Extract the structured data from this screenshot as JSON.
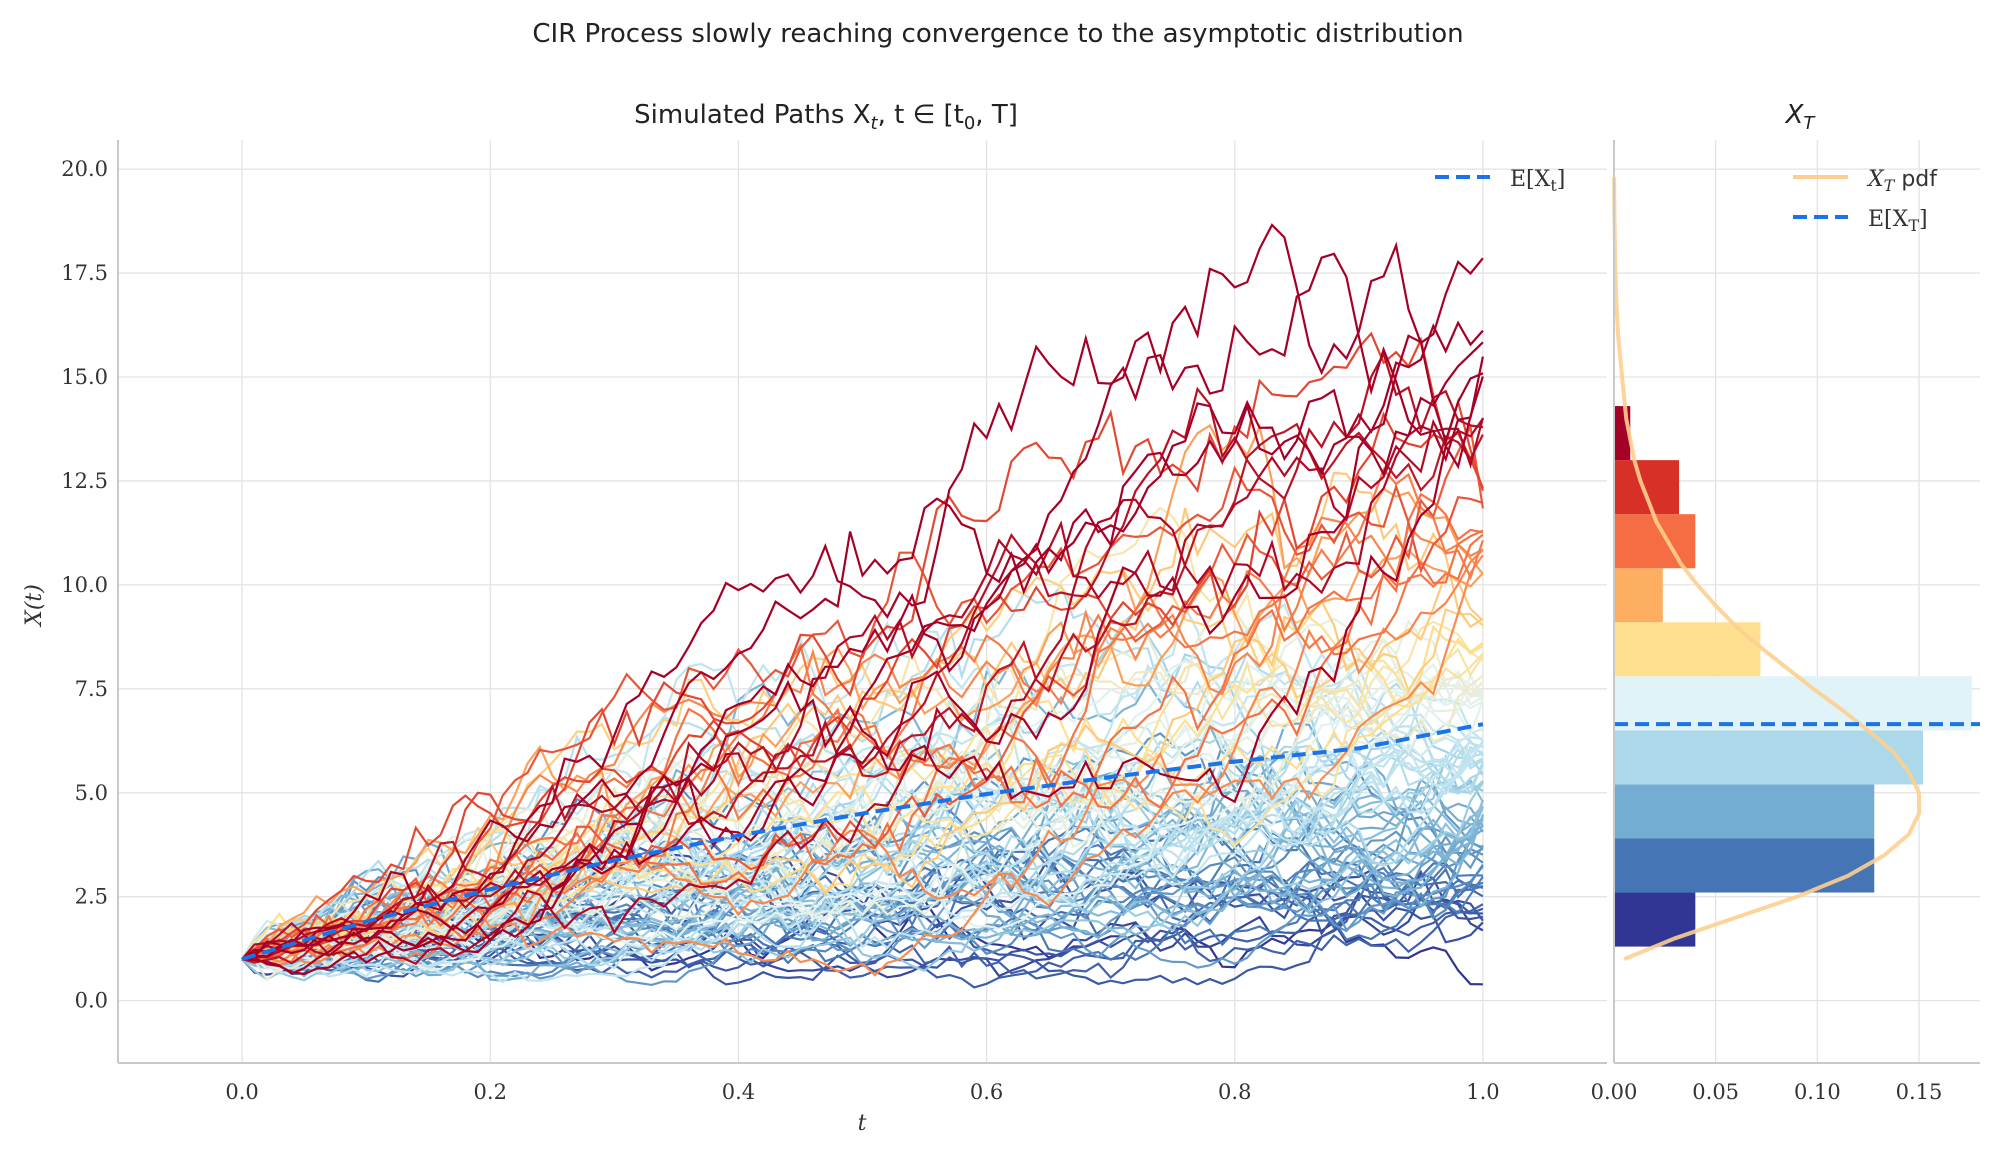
{
  "figure": {
    "suptitle": "CIR Process slowly reaching convergence to the asymptotic distribution"
  },
  "chart_data": [
    {
      "type": "line",
      "title": "Simulated Paths X_t, t ∈ [t_0, T]",
      "xlabel": "t",
      "ylabel": "X(t)",
      "xlim": [
        -0.1,
        1.1
      ],
      "ylim": [
        -1.5,
        20.7
      ],
      "grid": true,
      "legend_position": "top-right",
      "xticks": [
        "0.0",
        "0.2",
        "0.4",
        "0.6",
        "0.8",
        "1.0"
      ],
      "yticks": [
        "0.0",
        "2.5",
        "5.0",
        "7.5",
        "10.0",
        "12.5",
        "15.0",
        "17.5",
        "20.0"
      ],
      "mean_series": {
        "name": "E[X_t]",
        "color": "#1a73e8",
        "x": [
          0.0,
          0.1,
          0.2,
          0.3,
          0.4,
          0.5,
          0.6,
          0.7,
          0.8,
          0.9,
          1.0
        ],
        "y": [
          1.0,
          1.9,
          2.68,
          3.37,
          3.97,
          4.5,
          4.97,
          5.38,
          5.75,
          6.07,
          6.65
        ]
      },
      "paths": {
        "count": 100,
        "x0": 1.0,
        "t_start": 0.0,
        "t_end": 1.0,
        "steps": 100,
        "colormap": [
          "#313695",
          "#4575b4",
          "#74add1",
          "#abd9e9",
          "#e0f3f8",
          "#fee090",
          "#fdae61",
          "#f46d43",
          "#d73027",
          "#a50026"
        ]
      }
    },
    {
      "type": "bar",
      "orientation": "horizontal",
      "title": "X_T",
      "xlim": [
        0.0,
        0.18
      ],
      "ylim": [
        -1.5,
        20.7
      ],
      "grid": true,
      "legend_position": "top-right",
      "xticks": [
        "0.00",
        "0.05",
        "0.10",
        "0.15"
      ],
      "bins": [
        {
          "y0": 1.3,
          "y1": 2.6,
          "density": 0.04,
          "color": "#313695"
        },
        {
          "y0": 2.6,
          "y1": 3.9,
          "density": 0.128,
          "color": "#4575b4"
        },
        {
          "y0": 3.9,
          "y1": 5.2,
          "density": 0.128,
          "color": "#74add1"
        },
        {
          "y0": 5.2,
          "y1": 6.5,
          "density": 0.152,
          "color": "#abd9e9"
        },
        {
          "y0": 6.5,
          "y1": 7.8,
          "density": 0.176,
          "color": "#e0f3f8"
        },
        {
          "y0": 7.8,
          "y1": 9.1,
          "density": 0.072,
          "color": "#fee090"
        },
        {
          "y0": 9.1,
          "y1": 10.4,
          "density": 0.024,
          "color": "#fdae61"
        },
        {
          "y0": 10.4,
          "y1": 11.7,
          "density": 0.04,
          "color": "#f46d43"
        },
        {
          "y0": 11.7,
          "y1": 13.0,
          "density": 0.032,
          "color": "#d73027"
        },
        {
          "y0": 13.0,
          "y1": 14.3,
          "density": 0.008,
          "color": "#a50026"
        }
      ],
      "pdf_series": {
        "name": "X_T pdf",
        "color": "#fdcf8f",
        "y": [
          1.0,
          1.5,
          2.0,
          2.5,
          3.0,
          3.5,
          4.0,
          4.5,
          5.0,
          5.5,
          6.0,
          6.5,
          7.0,
          7.5,
          8.0,
          8.5,
          9.0,
          9.5,
          10.0,
          10.5,
          11.0,
          11.5,
          12.0,
          12.5,
          13.0,
          13.5,
          14.0,
          14.5,
          15.0,
          16.0,
          17.0,
          18.0,
          19.0,
          19.8
        ],
        "density": [
          0.005,
          0.03,
          0.06,
          0.09,
          0.115,
          0.133,
          0.145,
          0.15,
          0.15,
          0.145,
          0.137,
          0.125,
          0.112,
          0.098,
          0.085,
          0.072,
          0.06,
          0.05,
          0.041,
          0.033,
          0.027,
          0.021,
          0.017,
          0.013,
          0.01,
          0.008,
          0.006,
          0.005,
          0.004,
          0.002,
          0.001,
          0.0005,
          0.0002,
          0.0001
        ]
      },
      "mean_line": {
        "name": "E[X_T]",
        "value": 6.65,
        "color": "#1a73e8"
      }
    }
  ]
}
